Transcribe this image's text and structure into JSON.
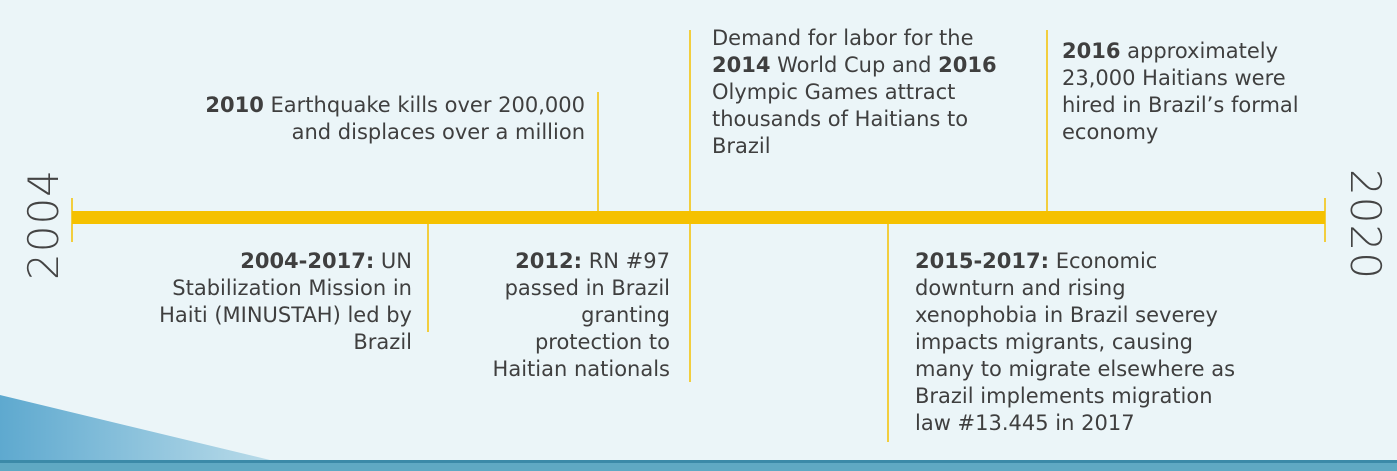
{
  "start_year": "2004",
  "end_year": "2020",
  "events": [
    {
      "segments": [
        {
          "text": "2010",
          "bold": true
        },
        {
          "text": " Earthquake kills over 200,000 and displaces over a million"
        }
      ]
    },
    {
      "segments": [
        {
          "text": "Demand for labor for the "
        },
        {
          "text": "2014",
          "bold": true
        },
        {
          "text": " World Cup and "
        },
        {
          "text": "2016",
          "bold": true
        },
        {
          "text": " Olympic Games attract thousands of Haitians to Brazil"
        }
      ]
    },
    {
      "segments": [
        {
          "text": "2016",
          "bold": true
        },
        {
          "text": " approximately 23,000 Haitians were hired in Brazil’s formal economy"
        }
      ]
    },
    {
      "segments": [
        {
          "text": "2004-2017:",
          "bold": true
        },
        {
          "text": " UN Stabilization Mission in Haiti (MINUSTAH) led by Brazil"
        }
      ]
    },
    {
      "segments": [
        {
          "text": "2012:",
          "bold": true
        },
        {
          "text": " RN #97 passed in Brazil granting protection to Haitian nationals"
        }
      ]
    },
    {
      "segments": [
        {
          "text": "2015-2017:",
          "bold": true
        },
        {
          "text": " Economic downturn and rising xenophobia in Brazil severey impacts migrants, causing many to migrate elsewhere as Brazil implements migration law #13.445 in 2017"
        }
      ]
    }
  ]
}
